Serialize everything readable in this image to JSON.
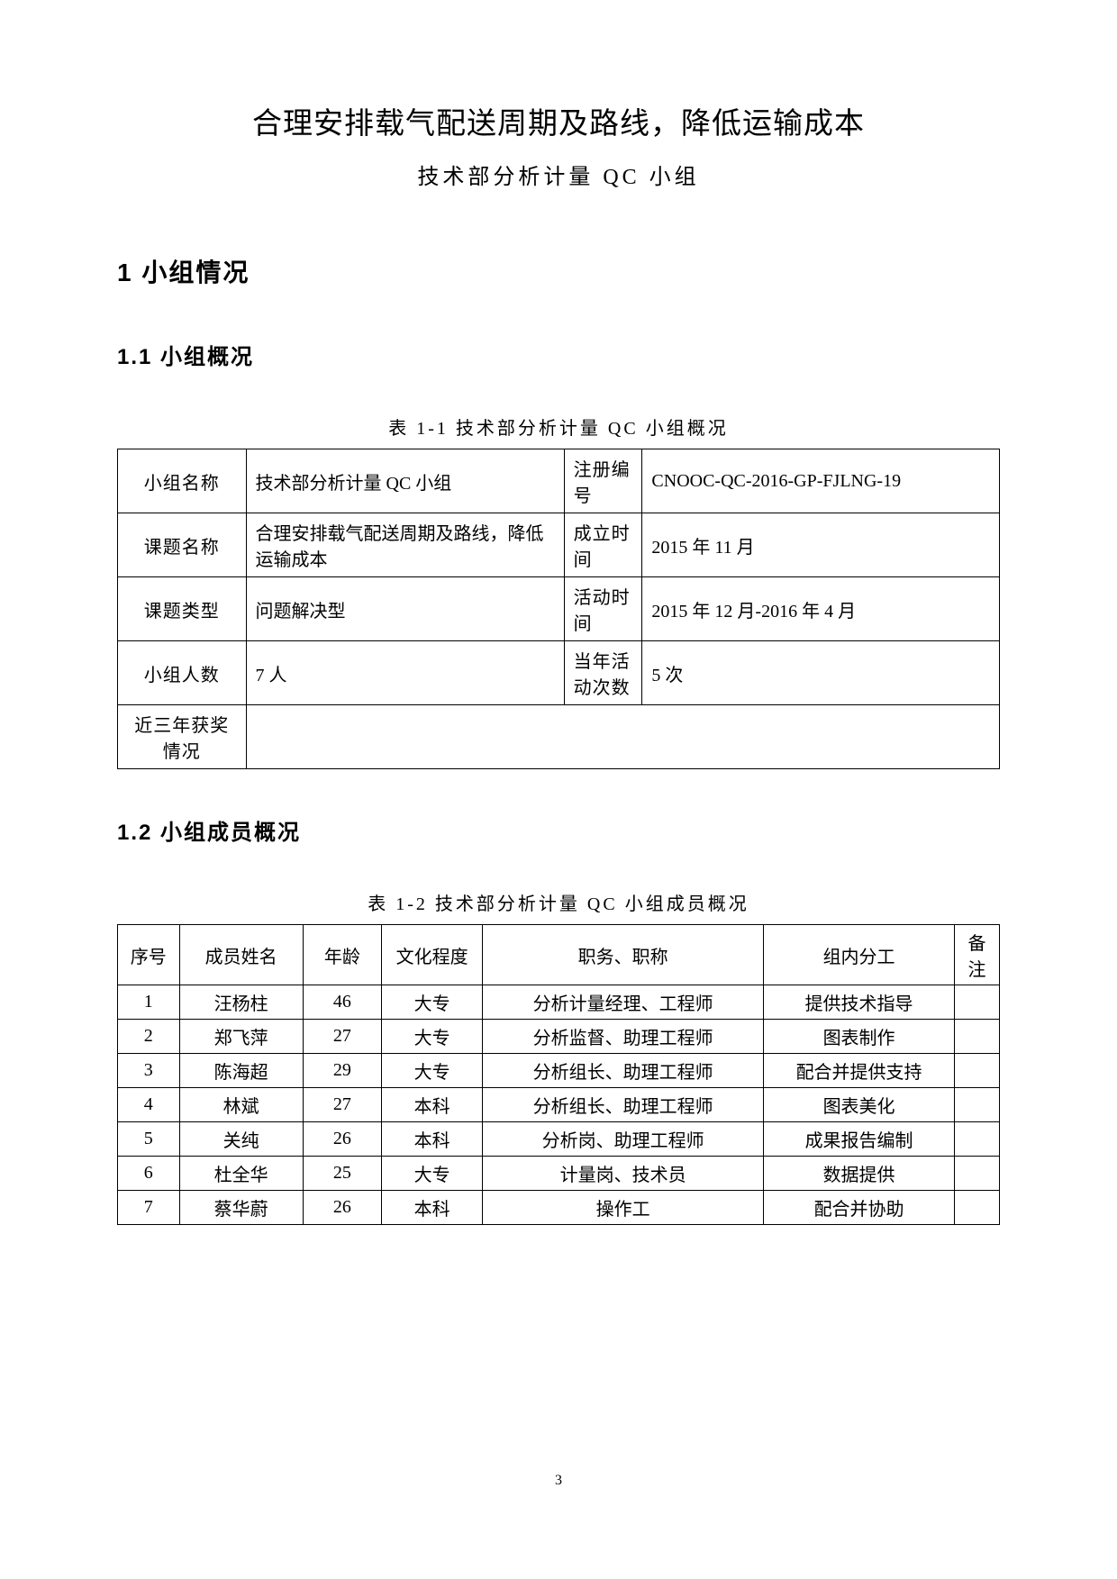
{
  "doc": {
    "title": "合理安排载气配送周期及路线，降低运输成本",
    "subtitle": "技术部分析计量 QC 小组",
    "section1": "1  小组情况",
    "section11": "1.1 小组概况",
    "section12": "1.2 小组成员概况",
    "page_number": "3"
  },
  "table1": {
    "caption": "表 1-1  技术部分析计量 QC 小组概况",
    "rows": {
      "r1": {
        "k1": "小组名称",
        "v1": "技术部分析计量 QC 小组",
        "k2": "注册编号",
        "v2": "CNOOC-QC-2016-GP-FJLNG-19"
      },
      "r2": {
        "k1": "课题名称",
        "v1": "合理安排载气配送周期及路线，降低运输成本",
        "k2": "成立时间",
        "v2": "2015 年 11 月"
      },
      "r3": {
        "k1": "课题类型",
        "v1": "问题解决型",
        "k2": "活动时间",
        "v2": "2015 年 12 月-2016 年 4 月"
      },
      "r4": {
        "k1": "小组人数",
        "v1": "7 人",
        "k2": "当年活动次数",
        "v2": "5 次"
      },
      "r5": {
        "k1": "近三年获奖情况",
        "v1": ""
      }
    }
  },
  "table2": {
    "caption": "表 1-2  技术部分析计量 QC 小组成员概况",
    "headers": {
      "idx": "序号",
      "name": "成员姓名",
      "age": "年龄",
      "edu": "文化程度",
      "duty": "职务、职称",
      "role": "组内分工",
      "note": "备注"
    },
    "rows": {
      "0": {
        "idx": "1",
        "name": "汪杨柱",
        "age": "46",
        "edu": "大专",
        "duty": "分析计量经理、工程师",
        "role": "提供技术指导",
        "note": ""
      },
      "1": {
        "idx": "2",
        "name": "郑飞萍",
        "age": "27",
        "edu": "大专",
        "duty": "分析监督、助理工程师",
        "role": "图表制作",
        "note": ""
      },
      "2": {
        "idx": "3",
        "name": "陈海超",
        "age": "29",
        "edu": "大专",
        "duty": "分析组长、助理工程师",
        "role": "配合并提供支持",
        "note": ""
      },
      "3": {
        "idx": "4",
        "name": "林斌",
        "age": "27",
        "edu": "本科",
        "duty": "分析组长、助理工程师",
        "role": "图表美化",
        "note": ""
      },
      "4": {
        "idx": "5",
        "name": "关纯",
        "age": "26",
        "edu": "本科",
        "duty": "分析岗、助理工程师",
        "role": "成果报告编制",
        "note": ""
      },
      "5": {
        "idx": "6",
        "name": "杜全华",
        "age": "25",
        "edu": "大专",
        "duty": "计量岗、技术员",
        "role": "数据提供",
        "note": ""
      },
      "6": {
        "idx": "7",
        "name": "蔡华蔚",
        "age": "26",
        "edu": "本科",
        "duty": "操作工",
        "role": "配合并协助",
        "note": ""
      }
    }
  }
}
